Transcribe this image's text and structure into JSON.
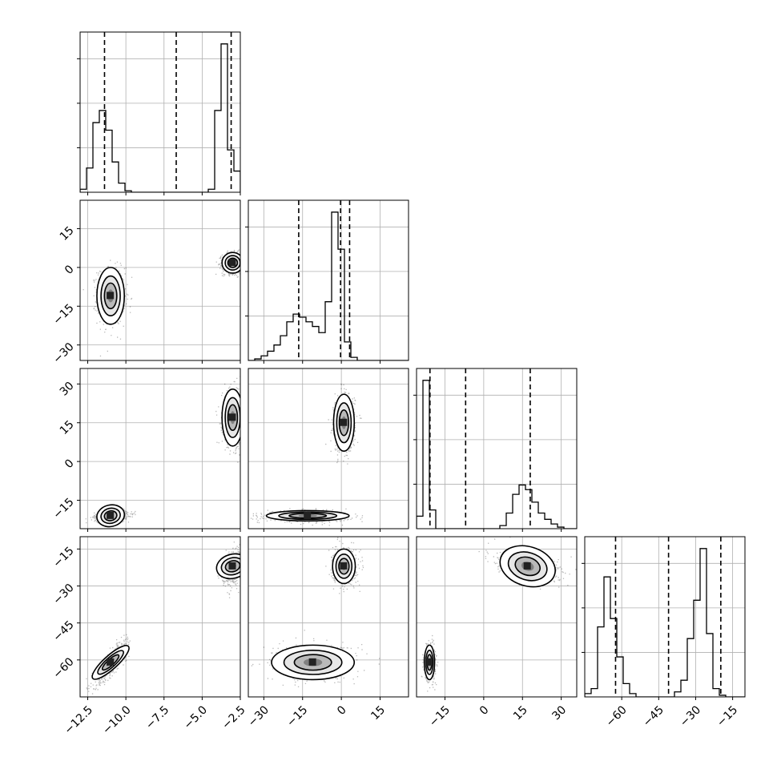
{
  "chart_data": {
    "type": "corner",
    "title": "",
    "grid": true,
    "ndim": 4,
    "param_labels": [
      "",
      "",
      "",
      ""
    ],
    "axes": [
      {
        "range": [
          -13.0,
          -2.5
        ],
        "ticks": [
          -12.5,
          -10.0,
          -7.5,
          -5.0,
          -2.5
        ],
        "tick_labels": [
          "−12.5",
          "−10.0",
          "−7.5",
          "−5.0",
          "−2.5"
        ]
      },
      {
        "range": [
          -36,
          26
        ],
        "ticks": [
          -30,
          -15,
          0,
          15
        ],
        "tick_labels": [
          "−30",
          "−15",
          "0",
          "15"
        ]
      },
      {
        "range": [
          -26,
          36
        ],
        "ticks": [
          -15,
          0,
          15,
          30
        ],
        "tick_labels": [
          "−15",
          "0",
          "15",
          "30"
        ]
      },
      {
        "range": [
          -75,
          -10
        ],
        "ticks": [
          -60,
          -45,
          -30,
          -15
        ],
        "tick_labels": [
          "−60",
          "−45",
          "−30",
          "−15"
        ]
      }
    ],
    "marginals": [
      {
        "bins": [
          -13.0,
          -12.58,
          -12.16,
          -11.74,
          -11.32,
          -10.9,
          -10.48,
          -10.06,
          -9.64,
          -9.22,
          -8.8,
          -8.38,
          -7.96,
          -7.54,
          -7.12,
          -6.7,
          -6.28,
          -5.86,
          -5.44,
          -5.02,
          -4.6,
          -4.18,
          -3.76,
          -3.34,
          -2.92,
          -2.5
        ],
        "counts": [
          0.02,
          0.16,
          0.46,
          0.54,
          0.41,
          0.2,
          0.06,
          0.01,
          0,
          0,
          0,
          0,
          0,
          0,
          0,
          0,
          0,
          0,
          0,
          0,
          0.02,
          0.54,
          0.98,
          0.28,
          0.14
        ],
        "quantiles": [
          -11.4,
          -6.7,
          -3.1
        ]
      },
      {
        "bins": [
          -36,
          -33.52,
          -31.04,
          -28.56,
          -26.08,
          -23.6,
          -21.12,
          -18.64,
          -16.16,
          -13.68,
          -11.2,
          -8.72,
          -6.24,
          -3.76,
          -1.28,
          1.2,
          3.68,
          6.16,
          8.64,
          11.12,
          13.6,
          16.08,
          18.56,
          21.04,
          23.52,
          26
        ],
        "counts": [
          0,
          0.01,
          0.03,
          0.06,
          0.1,
          0.16,
          0.25,
          0.3,
          0.28,
          0.25,
          0.22,
          0.18,
          0.38,
          0.96,
          0.72,
          0.12,
          0.02,
          0,
          0,
          0,
          0,
          0,
          0,
          0,
          0
        ],
        "quantiles": [
          -16.5,
          -0.3,
          3.2
        ]
      },
      {
        "bins": [
          -26,
          -23.52,
          -21.04,
          -18.56,
          -16.08,
          -13.6,
          -11.12,
          -8.64,
          -6.16,
          -3.68,
          -1.2,
          1.28,
          3.76,
          6.24,
          8.72,
          11.2,
          13.68,
          16.16,
          18.64,
          21.12,
          23.6,
          26.08,
          28.56,
          31.04,
          33.52,
          36
        ],
        "counts": [
          0.08,
          0.95,
          0.12,
          0,
          0,
          0,
          0,
          0,
          0,
          0,
          0,
          0,
          0,
          0.02,
          0.1,
          0.22,
          0.28,
          0.25,
          0.17,
          0.1,
          0.06,
          0.03,
          0.01,
          0,
          0
        ],
        "quantiles": [
          -20.8,
          -7.0,
          18.0
        ]
      },
      {
        "bins": [
          -75,
          -72.4,
          -69.8,
          -67.2,
          -64.6,
          -62.0,
          -59.4,
          -56.8,
          -54.2,
          -51.6,
          -49.0,
          -46.4,
          -43.8,
          -41.2,
          -38.6,
          -36.0,
          -33.4,
          -30.8,
          -28.2,
          -25.6,
          -23.0,
          -20.4,
          -17.8,
          -15.2,
          -12.6,
          -10
        ],
        "counts": [
          0.02,
          0.05,
          0.42,
          0.72,
          0.47,
          0.24,
          0.08,
          0.02,
          0,
          0,
          0,
          0,
          0,
          0,
          0.03,
          0.1,
          0.35,
          0.58,
          0.89,
          0.38,
          0.05,
          0.01,
          0,
          0,
          0
        ],
        "quantiles": [
          -62.5,
          -41.0,
          -19.8
        ]
      }
    ],
    "pairs": [
      {
        "row": 1,
        "col": 0,
        "modes": [
          {
            "cx": -11.0,
            "cy": -11.0,
            "sx": 0.45,
            "sy": 5.5,
            "rho": 0.0,
            "weight": 0.55
          },
          {
            "cx": -3.0,
            "cy": 1.8,
            "sx": 0.35,
            "sy": 2.0,
            "rho": 0.0,
            "weight": 0.45
          }
        ]
      },
      {
        "row": 2,
        "col": 0,
        "modes": [
          {
            "cx": -11.0,
            "cy": -21.0,
            "sx": 0.55,
            "sy": 1.0,
            "rho": 0.25,
            "weight": 0.55
          },
          {
            "cx": -3.0,
            "cy": 17.0,
            "sx": 0.35,
            "sy": 5.5,
            "rho": 0.0,
            "weight": 0.45
          }
        ]
      },
      {
        "row": 2,
        "col": 1,
        "modes": [
          {
            "cx": -13.0,
            "cy": -21.0,
            "sx": 8.0,
            "sy": 1.0,
            "rho": 0.0,
            "weight": 0.55
          },
          {
            "cx": 1.0,
            "cy": 15.0,
            "sx": 2.0,
            "sy": 5.5,
            "rho": 0.0,
            "weight": 0.45
          }
        ]
      },
      {
        "row": 3,
        "col": 0,
        "modes": [
          {
            "cx": -11.0,
            "cy": -61.0,
            "sx": 0.5,
            "sy": 4.0,
            "rho": 0.85,
            "weight": 0.55
          },
          {
            "cx": -3.0,
            "cy": -22.0,
            "sx": 0.35,
            "sy": 3.5,
            "rho": 0.3,
            "weight": 0.45
          }
        ]
      },
      {
        "row": 3,
        "col": 1,
        "modes": [
          {
            "cx": -11.0,
            "cy": -61.0,
            "sx": 8.0,
            "sy": 3.5,
            "rho": 0.0,
            "weight": 0.55
          },
          {
            "cx": 1.0,
            "cy": -22.0,
            "sx": 2.2,
            "sy": 3.5,
            "rho": 0.0,
            "weight": 0.45
          }
        ]
      },
      {
        "row": 3,
        "col": 2,
        "modes": [
          {
            "cx": -21.0,
            "cy": -61.0,
            "sx": 1.0,
            "sy": 3.5,
            "rho": 0.0,
            "weight": 0.55
          },
          {
            "cx": 17.0,
            "cy": -22.0,
            "sx": 6.0,
            "sy": 3.0,
            "rho": -0.35,
            "weight": 0.45
          }
        ]
      }
    ]
  }
}
